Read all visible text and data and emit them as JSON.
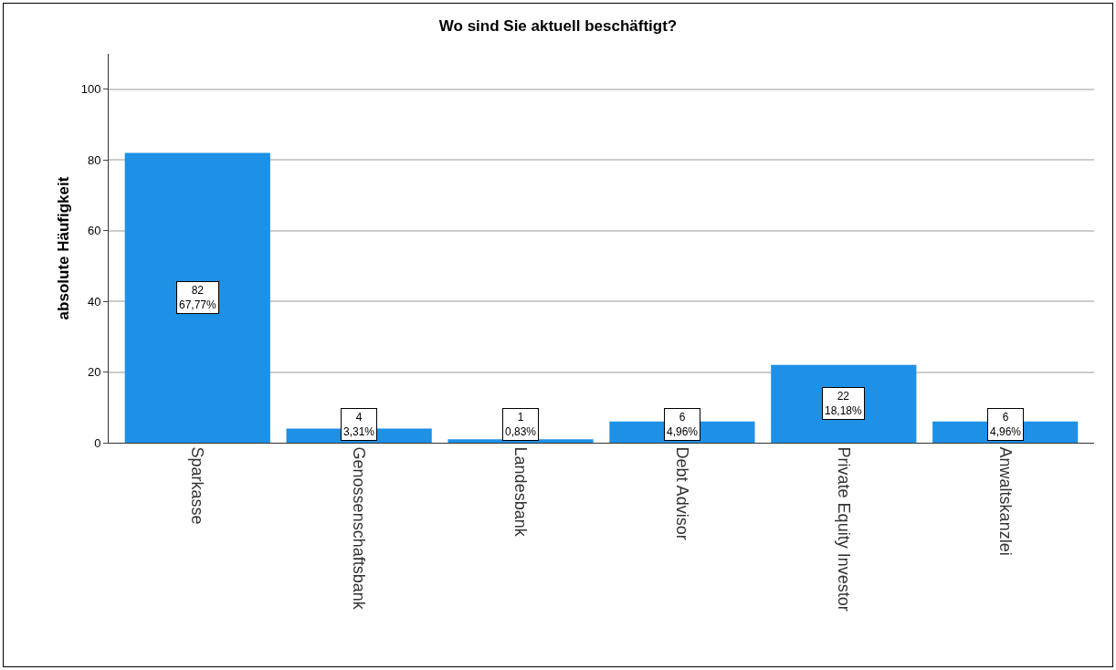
{
  "chart_data": {
    "type": "bar",
    "title": "Wo sind Sie aktuell beschäftigt?",
    "ylabel": "absolute Häufigkeit",
    "categories": [
      "Sparkasse",
      "Genossenschaftsbank",
      "Landesbank",
      "Debt Advisor",
      "Private Equity Investor",
      "Anwaltskanzlei"
    ],
    "values": [
      82,
      4,
      1,
      6,
      22,
      6
    ],
    "value_labels": [
      "82\n67,77%",
      "4\n3,31%",
      "1\n0,83%",
      "6\n4,96%",
      "22\n18,18%",
      "6\n4,96%"
    ],
    "color": "#1e90e6",
    "ylim": [
      0,
      110
    ],
    "yticks": [
      0,
      20,
      40,
      60,
      80,
      100
    ],
    "grid": "y"
  }
}
